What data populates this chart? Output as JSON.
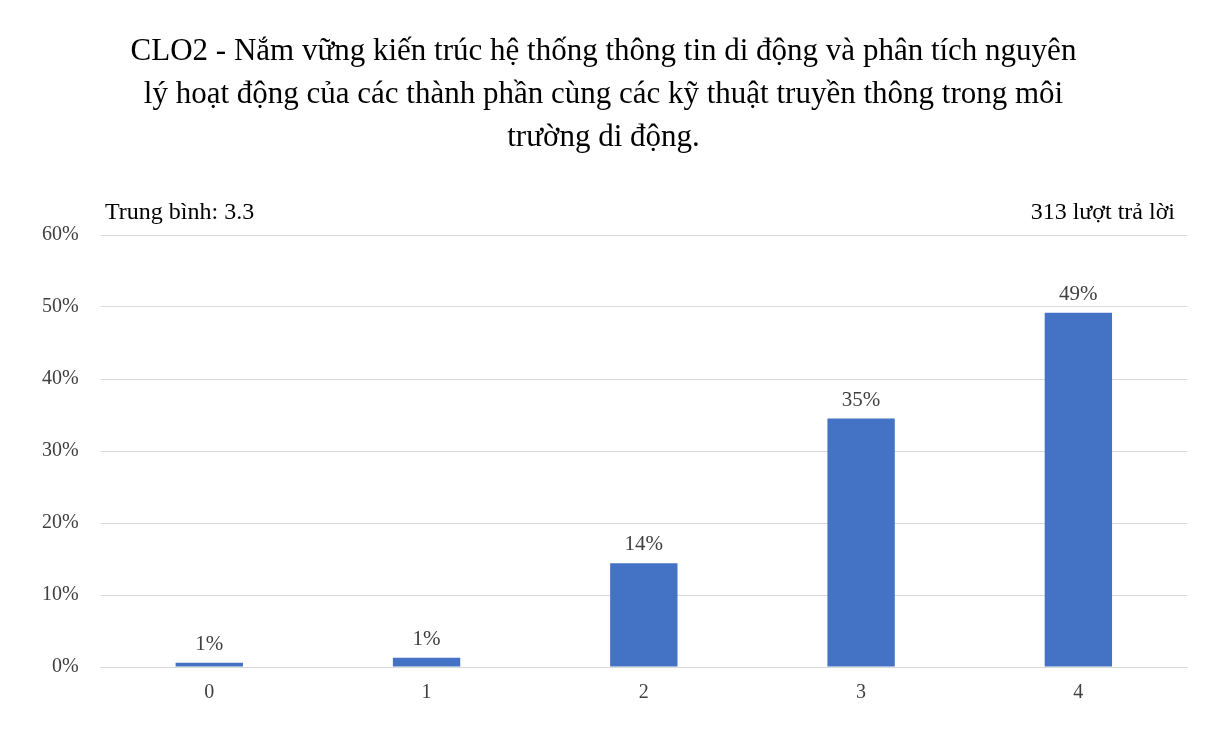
{
  "chart_data": {
    "type": "bar",
    "title": "CLO2 - Nắm vững kiến trúc hệ thống thông tin di động và phân tích nguyên lý hoạt động của các thành phần cùng các kỹ thuật truyền thông trong môi trường di động.",
    "annotations": [
      "Trung bình: 3.3",
      "313 lượt trả lời"
    ],
    "categories": [
      "0",
      "1",
      "2",
      "3",
      "4"
    ],
    "values": [
      0.6,
      1.3,
      14.4,
      34.5,
      49.2
    ],
    "value_labels": [
      "1%",
      "1%",
      "14%",
      "35%",
      "49%"
    ],
    "color": "#4472c4",
    "ylim": [
      0,
      60
    ],
    "yticks": [
      {
        "value": 0,
        "label": "0%"
      },
      {
        "value": 10,
        "label": "10%"
      },
      {
        "value": 20,
        "label": "20%"
      },
      {
        "value": 30,
        "label": "30%"
      },
      {
        "value": 40,
        "label": "40%"
      },
      {
        "value": 50,
        "label": "50%"
      },
      {
        "value": 60,
        "label": "60%"
      }
    ],
    "grid": "y",
    "legend": false
  }
}
